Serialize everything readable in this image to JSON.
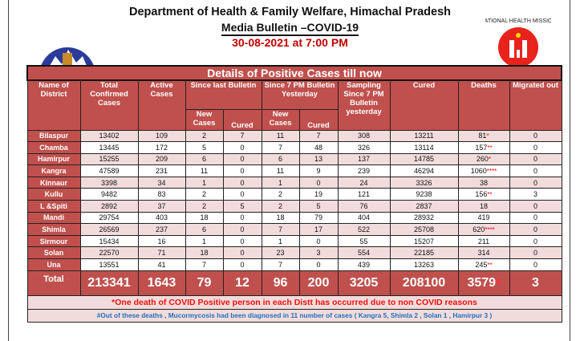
{
  "header": {
    "department": "Department of Health & Family Welfare, Himachal Pradesh",
    "bulletin": "Media Bulletin –COVID-19",
    "datetime": "30-08-2021 at 7:00 PM"
  },
  "logos": {
    "left": "Himachal Pradesh Government emblem",
    "right_text": "NATIONAL HEALTH MISSION"
  },
  "colors": {
    "header_bg": "#c0504d",
    "alt_row": "#f2dcdb",
    "date": "#c00000",
    "note1": "#ee1111",
    "note2": "#1f6fc0"
  },
  "table": {
    "title": "Details of Positive Cases till now",
    "columns": {
      "district": "Name of District",
      "total": "Total Confirmed Cases",
      "active": "Active Cases",
      "since_last": "Since last Bulletin",
      "since_7pm": "Since 7 PM Bulletin Yesterday",
      "new_cases": "New Cases",
      "cured_sub": "Cured",
      "sampling": "Sampling Since 7 PM Bulletin yesterday",
      "cured": "Cured",
      "deaths": "Deaths",
      "migrated": "Migrated out"
    },
    "rows": [
      {
        "district": "Bilaspur",
        "total": "13402",
        "active": "109",
        "sl_new": "2",
        "sl_cured": "7",
        "s7_new": "11",
        "s7_cured": "7",
        "sampling": "308",
        "cured": "13211",
        "deaths": "81",
        "mark": "*",
        "migrated": "0"
      },
      {
        "district": "Chamba",
        "total": "13445",
        "active": "172",
        "sl_new": "5",
        "sl_cured": "0",
        "s7_new": "7",
        "s7_cured": "48",
        "sampling": "326",
        "cured": "13114",
        "deaths": "157",
        "mark": "**",
        "migrated": "0"
      },
      {
        "district": "Hamirpur",
        "total": "15255",
        "active": "209",
        "sl_new": "6",
        "sl_cured": "0",
        "s7_new": "6",
        "s7_cured": "13",
        "sampling": "137",
        "cured": "14785",
        "deaths": "260",
        "mark": "*",
        "migrated": "0"
      },
      {
        "district": "Kangra",
        "total": "47589",
        "active": "231",
        "sl_new": "11",
        "sl_cured": "0",
        "s7_new": "11",
        "s7_cured": "9",
        "sampling": "239",
        "cured": "46294",
        "deaths": "1060",
        "mark": "****",
        "migrated": "0"
      },
      {
        "district": "Kinnaur",
        "total": "3398",
        "active": "34",
        "sl_new": "1",
        "sl_cured": "0",
        "s7_new": "1",
        "s7_cured": "0",
        "sampling": "24",
        "cured": "3326",
        "deaths": "38",
        "mark": "",
        "migrated": "0"
      },
      {
        "district": "Kullu",
        "total": "9482",
        "active": "83",
        "sl_new": "2",
        "sl_cured": "0",
        "s7_new": "2",
        "s7_cured": "19",
        "sampling": "121",
        "cured": "9238",
        "deaths": "156",
        "mark": "**",
        "migrated": "3"
      },
      {
        "district": "L &Spiti",
        "total": "2892",
        "active": "37",
        "sl_new": "2",
        "sl_cured": "5",
        "s7_new": "2",
        "s7_cured": "5",
        "sampling": "76",
        "cured": "2837",
        "deaths": "18",
        "mark": "",
        "migrated": "0"
      },
      {
        "district": "Mandi",
        "total": "29754",
        "active": "403",
        "sl_new": "18",
        "sl_cured": "0",
        "s7_new": "18",
        "s7_cured": "79",
        "sampling": "404",
        "cured": "28932",
        "deaths": "419",
        "mark": "",
        "migrated": "0"
      },
      {
        "district": "Shimla",
        "total": "26569",
        "active": "237",
        "sl_new": "6",
        "sl_cured": "0",
        "s7_new": "7",
        "s7_cured": "17",
        "sampling": "522",
        "cured": "25708",
        "deaths": "620",
        "mark": "****",
        "migrated": "0"
      },
      {
        "district": "Sirmour",
        "total": "15434",
        "active": "16",
        "sl_new": "1",
        "sl_cured": "0",
        "s7_new": "1",
        "s7_cured": "0",
        "sampling": "55",
        "cured": "15207",
        "deaths": "211",
        "mark": "",
        "migrated": "0"
      },
      {
        "district": "Solan",
        "total": "22570",
        "active": "71",
        "sl_new": "18",
        "sl_cured": "0",
        "s7_new": "23",
        "s7_cured": "3",
        "sampling": "554",
        "cured": "22185",
        "deaths": "314",
        "mark": "",
        "migrated": "0"
      },
      {
        "district": "Una",
        "total": "13551",
        "active": "41",
        "sl_new": "7",
        "sl_cured": "0",
        "s7_new": "7",
        "s7_cured": "0",
        "sampling": "439",
        "cured": "13263",
        "deaths": "245",
        "mark": "**",
        "migrated": "0"
      }
    ],
    "total": {
      "district": "Total",
      "total": "213341",
      "active": "1643",
      "sl_new": "79",
      "sl_cured": "12",
      "s7_new": "96",
      "s7_cured": "200",
      "sampling": "3205",
      "cured": "208100",
      "deaths": "3579",
      "mark": "*",
      "migrated": "3"
    },
    "note1": "*One death of COVID Positive person in each Distt has occurred due to non COVID reasons",
    "note2": "#Out of these deaths , Mucormycosis had been diagnosed in 11 number of cases ( Kangra 5, Shimla 2 , Solan 1 , Hamirpur 3 )"
  }
}
